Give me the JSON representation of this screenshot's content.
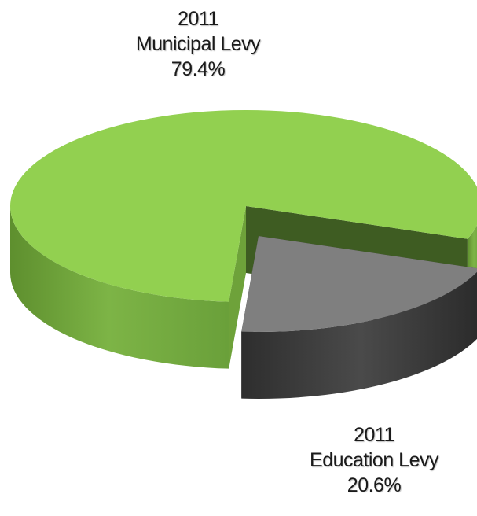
{
  "chart_data": {
    "type": "pie",
    "style": "3d-exploded",
    "slices": [
      {
        "label_year": "2011",
        "label_name": "Municipal Levy",
        "label_value": "79.4%",
        "value": 79.4,
        "color": "#92D050",
        "side_color": "#6EA23A",
        "inner_color": "#3E5C22"
      },
      {
        "label_year": "2011",
        "label_name": "Education Levy",
        "label_value": "20.6%",
        "value": 20.6,
        "color": "#7F7F7F",
        "side_color": "#3C3C3C",
        "inner_color": "#2A2A2A"
      }
    ]
  }
}
